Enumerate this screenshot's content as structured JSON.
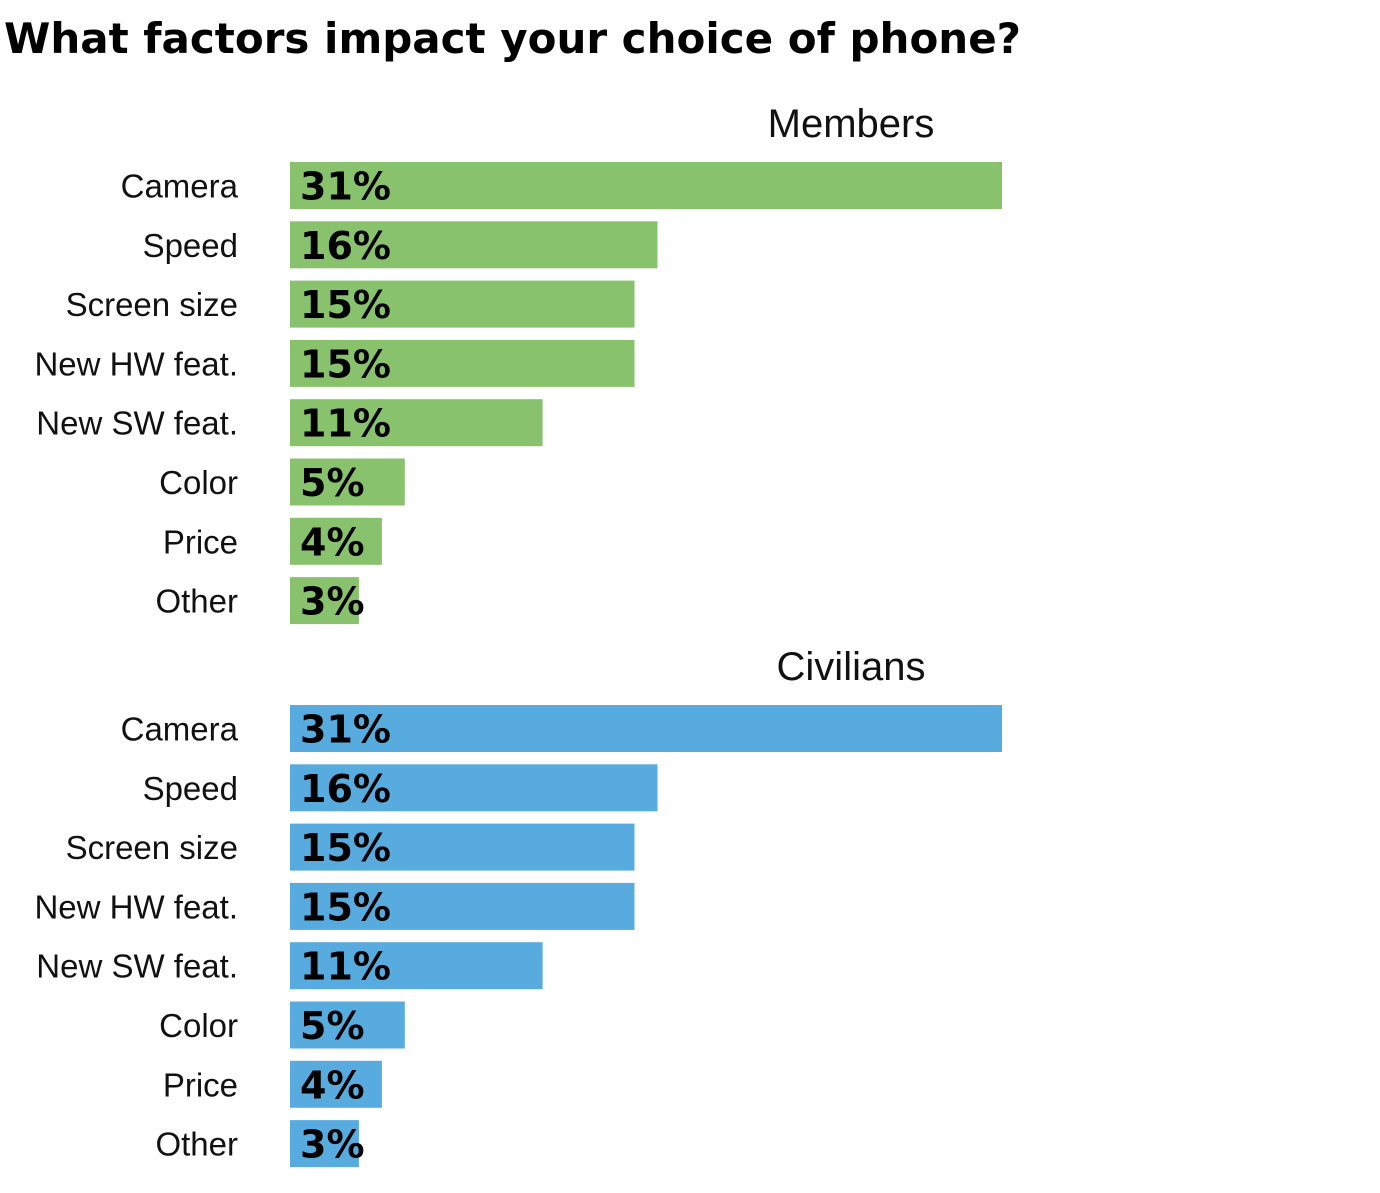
{
  "title": "What factors impact your choice of phone?",
  "chart_data": [
    {
      "type": "bar",
      "orientation": "horizontal",
      "title": "Members",
      "categories": [
        "Camera",
        "Speed",
        "Screen size",
        "New HW feat.",
        "New SW feat.",
        "Color",
        "Price",
        "Other"
      ],
      "values": [
        31,
        16,
        15,
        15,
        11,
        5,
        4,
        3
      ],
      "value_labels": [
        "31%",
        "16%",
        "15%",
        "15%",
        "11%",
        "5%",
        "4%",
        "3%"
      ],
      "unit": "%",
      "color": "#88c26d"
    },
    {
      "type": "bar",
      "orientation": "horizontal",
      "title": "Civilians",
      "categories": [
        "Camera",
        "Speed",
        "Screen size",
        "New HW feat.",
        "New SW feat.",
        "Color",
        "Price",
        "Other"
      ],
      "values": [
        31,
        16,
        15,
        15,
        11,
        5,
        4,
        3
      ],
      "value_labels": [
        "31%",
        "16%",
        "15%",
        "15%",
        "11%",
        "5%",
        "4%",
        "3%"
      ],
      "unit": "%",
      "color": "#58abdf"
    }
  ]
}
